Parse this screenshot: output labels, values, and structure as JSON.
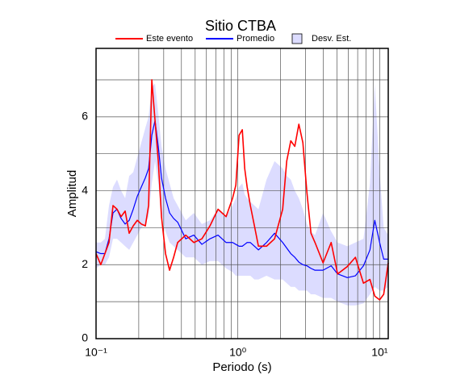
{
  "chart_data": {
    "type": "line",
    "title": "Sitio CTBA",
    "xlabel": "Periodo (s)",
    "ylabel": "Amplitud",
    "xscale": "log",
    "grid": true,
    "xlim": [
      0.1,
      11.5
    ],
    "ylim": [
      0,
      7.85
    ],
    "xticks": [
      {
        "value": 0.1,
        "label": "10⁻¹"
      },
      {
        "value": 1,
        "label": "10⁰"
      },
      {
        "value": 10,
        "label": "10¹"
      }
    ],
    "xminor": [
      0.2,
      0.3,
      0.4,
      0.5,
      0.6,
      0.7,
      0.8,
      0.9,
      2,
      3,
      4,
      5,
      6,
      7,
      8,
      9
    ],
    "yticks": [
      0,
      2,
      4,
      6
    ],
    "yminor": [
      1,
      3,
      5,
      7
    ],
    "x": [
      0.1,
      0.108,
      0.1155,
      0.1234,
      0.1317,
      0.1406,
      0.1502,
      0.1604,
      0.1713,
      0.1829,
      0.1953,
      0.2085,
      0.2227,
      0.2347,
      0.2473,
      0.2606,
      0.2747,
      0.2894,
      0.309,
      0.33,
      0.3524,
      0.3763,
      0.429,
      0.4892,
      0.5577,
      0.6358,
      0.7249,
      0.8266,
      0.9184,
      0.9678,
      1.02,
      1.075,
      1.118,
      1.163,
      1.225,
      1.309,
      1.397,
      1.593,
      1.816,
      2.071,
      2.211,
      2.362,
      2.522,
      2.693,
      2.875,
      3.07,
      3.28,
      3.501,
      3.991,
      4.551,
      5.054,
      5.917,
      6.746,
      7.691,
      8.543,
      9.244,
      10.0,
      10.68,
      11.5
    ],
    "band": {
      "name": "Desv. Est.",
      "color": "#dcdcff",
      "upper": [
        2.6,
        2.6,
        2.7,
        3.6,
        4.1,
        4.3,
        4.0,
        3.8,
        4.4,
        4.5,
        4.9,
        5.3,
        5.7,
        6.0,
        6.8,
        6.9,
        6.1,
        5.2,
        4.6,
        4.2,
        3.8,
        3.6,
        3.2,
        3.4,
        3.1,
        3.2,
        3.5,
        3.3,
        3.6,
        3.8,
        4.1,
        4.2,
        3.9,
        3.8,
        3.7,
        3.6,
        3.5,
        4.3,
        4.8,
        4.6,
        4.4,
        4.3,
        4.0,
        3.8,
        3.5,
        3.1,
        2.9,
        2.8,
        3.4,
        2.9,
        2.6,
        2.5,
        2.6,
        2.7,
        4.2,
        6.9,
        4.5,
        3.0,
        2.8
      ],
      "lower": [
        1.9,
        2.0,
        2.0,
        2.2,
        2.7,
        2.7,
        2.6,
        2.5,
        2.4,
        2.6,
        2.8,
        3.0,
        3.1,
        3.3,
        4.2,
        4.8,
        4.2,
        3.4,
        2.9,
        2.6,
        2.5,
        2.4,
        2.2,
        2.2,
        2.0,
        2.1,
        2.1,
        1.9,
        1.8,
        1.7,
        1.7,
        1.7,
        1.7,
        1.7,
        1.7,
        1.6,
        1.6,
        1.7,
        1.6,
        1.6,
        1.5,
        1.4,
        1.4,
        1.3,
        1.3,
        1.3,
        1.2,
        1.2,
        1.1,
        1.1,
        1.0,
        0.9,
        0.9,
        0.95,
        1.2,
        1.4,
        1.3,
        1.3,
        1.4
      ]
    },
    "series": [
      {
        "name": "Este evento",
        "color": "#ff0000",
        "values": [
          2.3,
          2.0,
          2.3,
          2.6,
          3.6,
          3.5,
          3.3,
          3.45,
          2.85,
          3.05,
          3.2,
          3.1,
          3.05,
          3.6,
          7.0,
          5.9,
          4.8,
          3.3,
          2.3,
          1.85,
          2.2,
          2.6,
          2.8,
          2.6,
          2.7,
          3.05,
          3.5,
          3.3,
          3.8,
          4.15,
          5.5,
          5.65,
          4.6,
          4.1,
          3.6,
          3.05,
          2.5,
          2.5,
          2.7,
          3.5,
          4.8,
          5.35,
          5.2,
          5.8,
          5.3,
          3.95,
          2.85,
          2.6,
          2.05,
          2.6,
          1.75,
          1.95,
          2.2,
          1.5,
          1.6,
          1.15,
          1.05,
          1.2,
          2.05
        ]
      },
      {
        "name": "Promedio",
        "color": "#0000ff",
        "values": [
          2.35,
          2.3,
          2.3,
          2.7,
          3.4,
          3.5,
          3.25,
          3.1,
          3.2,
          3.5,
          3.85,
          4.1,
          4.35,
          4.6,
          5.5,
          5.9,
          5.2,
          4.35,
          3.8,
          3.4,
          3.25,
          3.15,
          2.7,
          2.8,
          2.55,
          2.7,
          2.8,
          2.6,
          2.6,
          2.55,
          2.5,
          2.5,
          2.55,
          2.6,
          2.6,
          2.5,
          2.4,
          2.6,
          2.85,
          2.6,
          2.45,
          2.3,
          2.2,
          2.07,
          2.0,
          1.97,
          1.9,
          1.85,
          1.85,
          1.97,
          1.75,
          1.65,
          1.7,
          1.97,
          2.4,
          3.2,
          2.6,
          2.15,
          2.15
        ]
      }
    ]
  }
}
